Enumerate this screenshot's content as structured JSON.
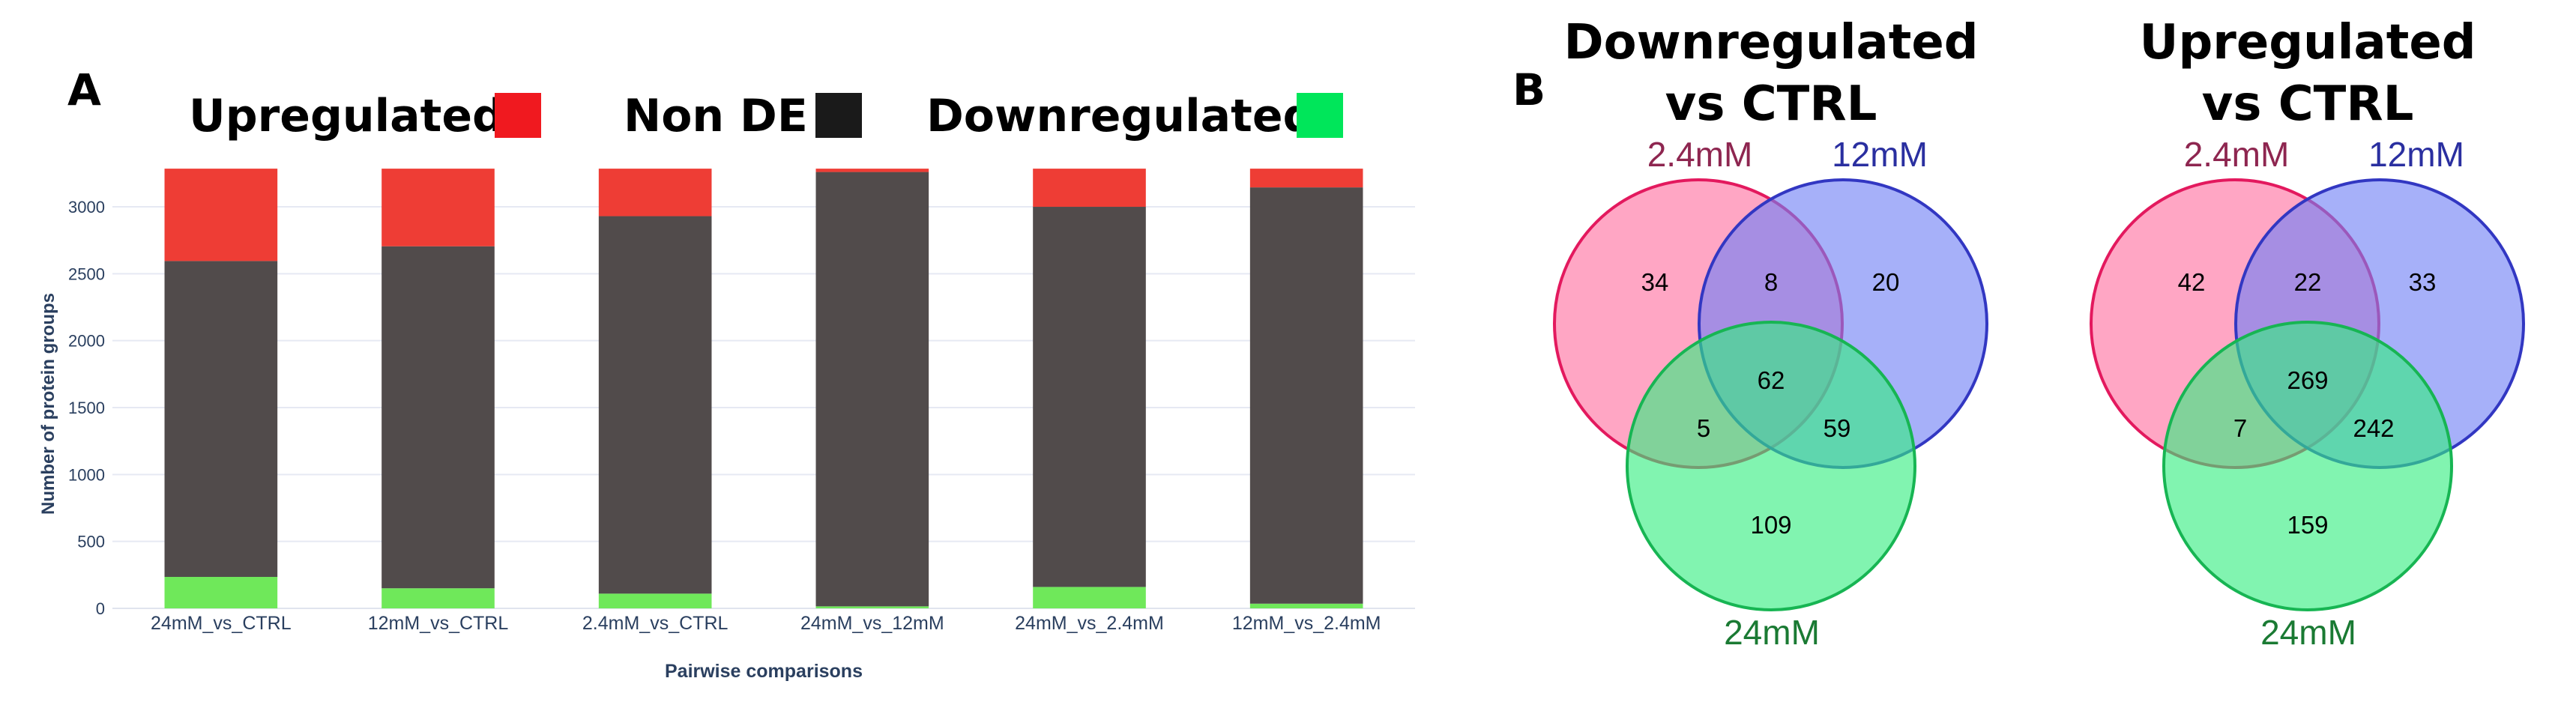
{
  "panel_a": {
    "label": "A",
    "legend": [
      {
        "label": "Upregulated",
        "color": "#f0191f"
      },
      {
        "label": "Non DE",
        "color": "#1a1a1a"
      },
      {
        "label": "Downregulated",
        "color": "#00e65a"
      }
    ]
  },
  "panel_b": {
    "label": "B"
  },
  "chart_data": [
    {
      "type": "bar",
      "stacked": true,
      "xlabel": "Pairwise comparisons",
      "ylabel": "Number of protein groups",
      "ylim": [
        0,
        3280
      ],
      "yticks": [
        0,
        500,
        1000,
        1500,
        2000,
        2500,
        3000
      ],
      "grid": true,
      "categories": [
        "24mM_vs_CTRL",
        "12mM_vs_CTRL",
        "2.4mM_vs_CTRL",
        "24mM_vs_12mM",
        "24mM_vs_2.4mM",
        "12mM_vs_2.4mM"
      ],
      "series": [
        {
          "name": "Downregulated",
          "color": "#6fe85a",
          "values": [
            235,
            150,
            110,
            15,
            160,
            35
          ]
        },
        {
          "name": "Non DE",
          "color": "#514b4b",
          "values": [
            2360,
            2555,
            2820,
            3245,
            2840,
            3110
          ]
        },
        {
          "name": "Upregulated",
          "color": "#ee3d35",
          "values": [
            690,
            580,
            355,
            25,
            285,
            140
          ]
        }
      ]
    },
    {
      "type": "venn",
      "title": [
        "Downregulated",
        "vs CTRL"
      ],
      "sets": [
        {
          "name": "2.4mM",
          "fill": "#ff6fa0",
          "stroke": "#e3195e",
          "label_color": "#8e2650"
        },
        {
          "name": "12mM",
          "fill": "#6f7ff5",
          "stroke": "#3237c2",
          "label_color": "#2a2fa0"
        },
        {
          "name": "24mM",
          "fill": "#33ee80",
          "stroke": "#17b553",
          "label_color": "#1a7a33"
        }
      ],
      "regions": {
        "a": 34,
        "ab": 8,
        "b": 20,
        "abc": 62,
        "ac": 5,
        "bc": 59,
        "c": 109
      }
    },
    {
      "type": "venn",
      "title": [
        "Upregulated",
        "vs CTRL"
      ],
      "sets": [
        {
          "name": "2.4mM",
          "fill": "#ff6fa0",
          "stroke": "#e3195e",
          "label_color": "#8e2650"
        },
        {
          "name": "12mM",
          "fill": "#6f7ff5",
          "stroke": "#3237c2",
          "label_color": "#2a2fa0"
        },
        {
          "name": "24mM",
          "fill": "#33ee80",
          "stroke": "#17b553",
          "label_color": "#1a7a33"
        }
      ],
      "regions": {
        "a": 42,
        "ab": 22,
        "b": 33,
        "abc": 269,
        "ac": 7,
        "bc": 242,
        "c": 159
      }
    }
  ]
}
